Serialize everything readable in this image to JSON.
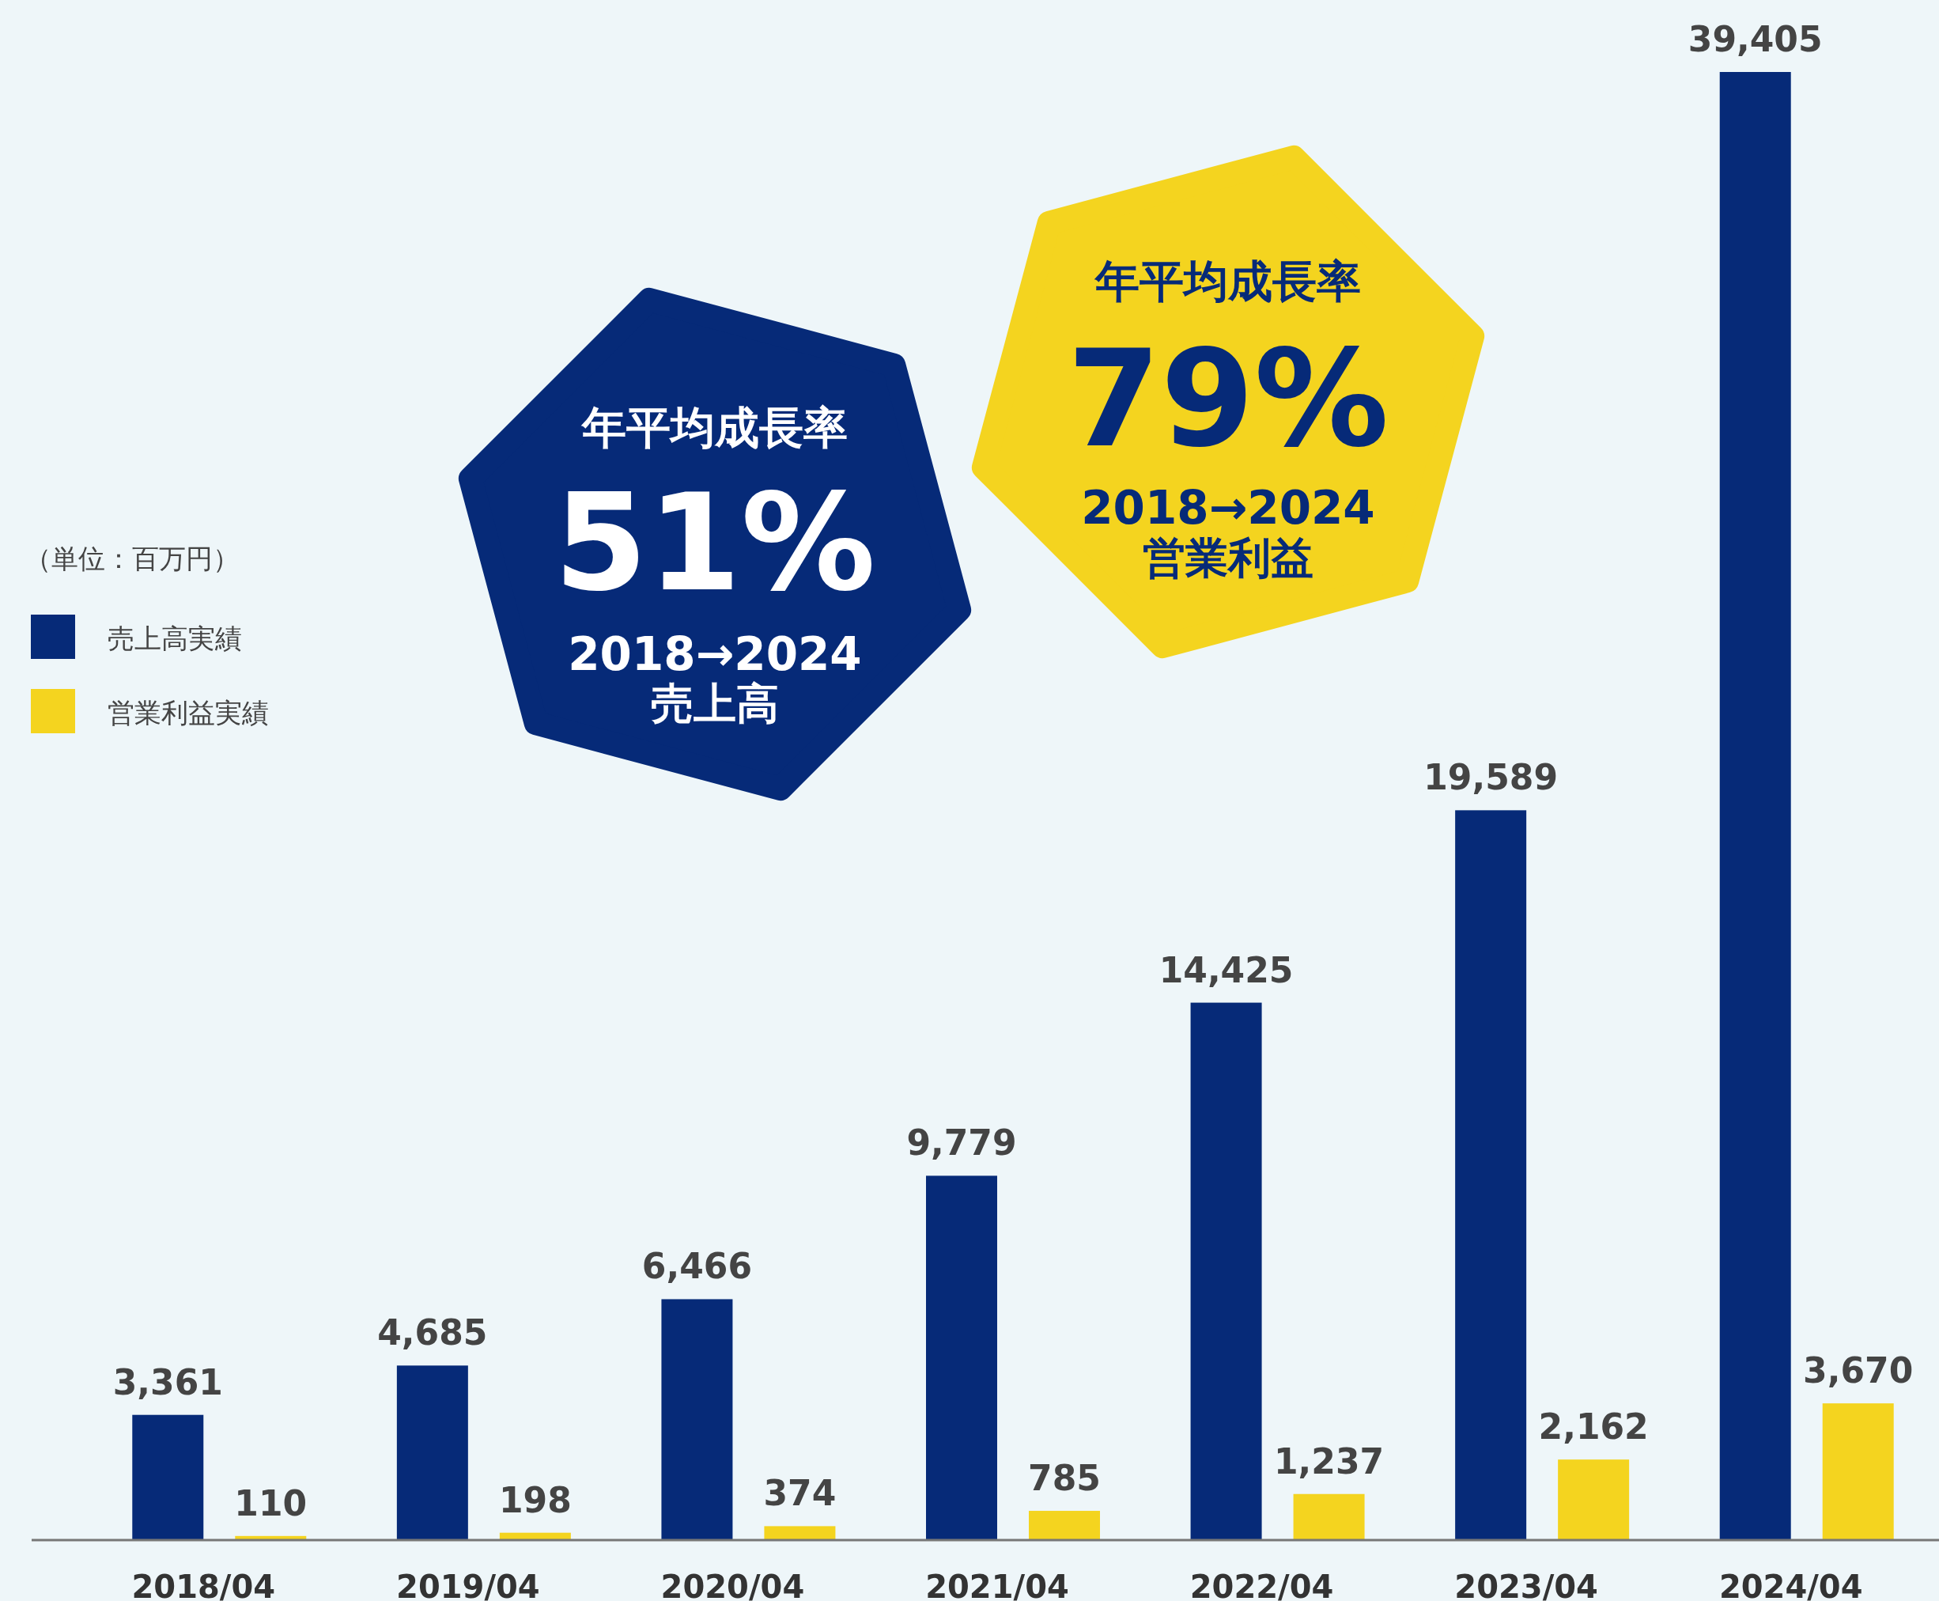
{
  "chart_data": {
    "type": "bar",
    "categories": [
      "2018/04",
      "2019/04",
      "2020/04",
      "2021/04",
      "2022/04",
      "2023/04",
      "2024/04"
    ],
    "series": [
      {
        "name": "売上高実績",
        "color": "#062a78",
        "values": [
          3361,
          4685,
          6466,
          9779,
          14425,
          19589,
          39405
        ],
        "value_labels": [
          "3,361",
          "4,685",
          "6,466",
          "9,779",
          "14,425",
          "19,589",
          "39,405"
        ]
      },
      {
        "name": "営業利益実績",
        "color": "#f4d41f",
        "values": [
          110,
          198,
          374,
          785,
          1237,
          2162,
          3670
        ],
        "value_labels": [
          "110",
          "198",
          "374",
          "785",
          "1,237",
          "2,162",
          "3,670"
        ]
      }
    ],
    "legend": "left",
    "annotations": [
      "（単位：百万円）",
      "年平均成長率",
      "51%",
      "2018→2024",
      "売上高",
      "年平均成長率",
      "79%",
      "2018→2024",
      "営業利益"
    ]
  }
}
